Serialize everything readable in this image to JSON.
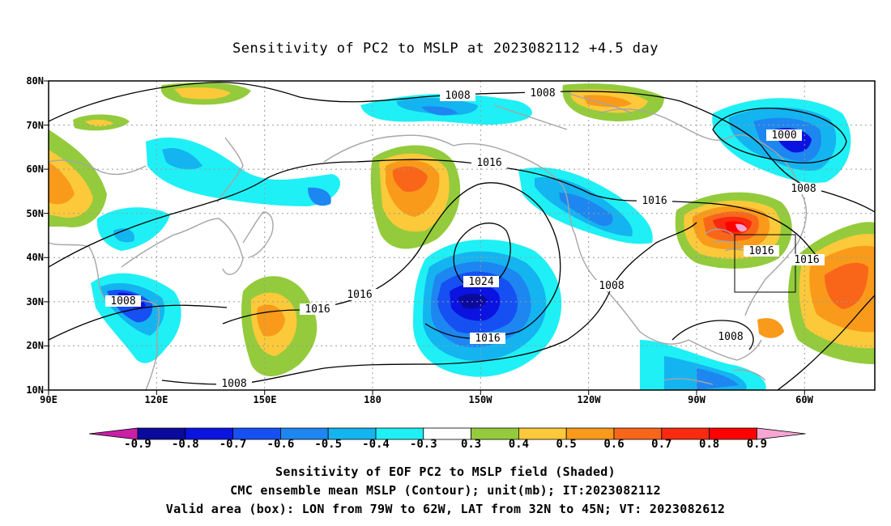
{
  "title": "Sensitivity of PC2 to MSLP at 2023082112 +4.5 day",
  "lat_labels": [
    "80N",
    "70N",
    "60N",
    "50N",
    "40N",
    "30N",
    "20N",
    "10N"
  ],
  "lon_labels": [
    "90E",
    "120E",
    "150E",
    "180",
    "150W",
    "120W",
    "90W",
    "60W"
  ],
  "contour_labels": [
    "1008",
    "1008",
    "1000",
    "1016",
    "1016",
    "1008",
    "1016",
    "1016",
    "1024",
    "1008",
    "1016",
    "1016",
    "1016",
    "1008",
    "1008",
    "1008"
  ],
  "colorbar": {
    "labels": [
      "-0.9",
      "-0.8",
      "-0.7",
      "-0.6",
      "-0.5",
      "-0.4",
      "-0.3",
      "0.3",
      "0.4",
      "0.5",
      "0.6",
      "0.7",
      "0.8",
      "0.9"
    ],
    "colors": [
      "#c81fa6",
      "#0a0a9c",
      "#0b13e0",
      "#1650f2",
      "#1e86f0",
      "#14b4f0",
      "#1ff0f5",
      "#ffffff",
      "#94cb3c",
      "#fcc93a",
      "#f99a1b",
      "#f9661a",
      "#f92a10",
      "#ff0000",
      "#f7a6d3"
    ]
  },
  "valid_box": {
    "lon_from": "79W",
    "lon_to": "62W",
    "lat_from": "32N",
    "lat_to": "45N"
  },
  "footer": {
    "line1": "Sensitivity of EOF PC2 to MSLP field (Shaded)",
    "line2": "CMC ensemble mean MSLP (Contour); unit(mb); IT:2023082112",
    "line3": "Valid area (box): LON from 79W to 62W, LAT from 32N to 45N; VT: 2023082612"
  }
}
